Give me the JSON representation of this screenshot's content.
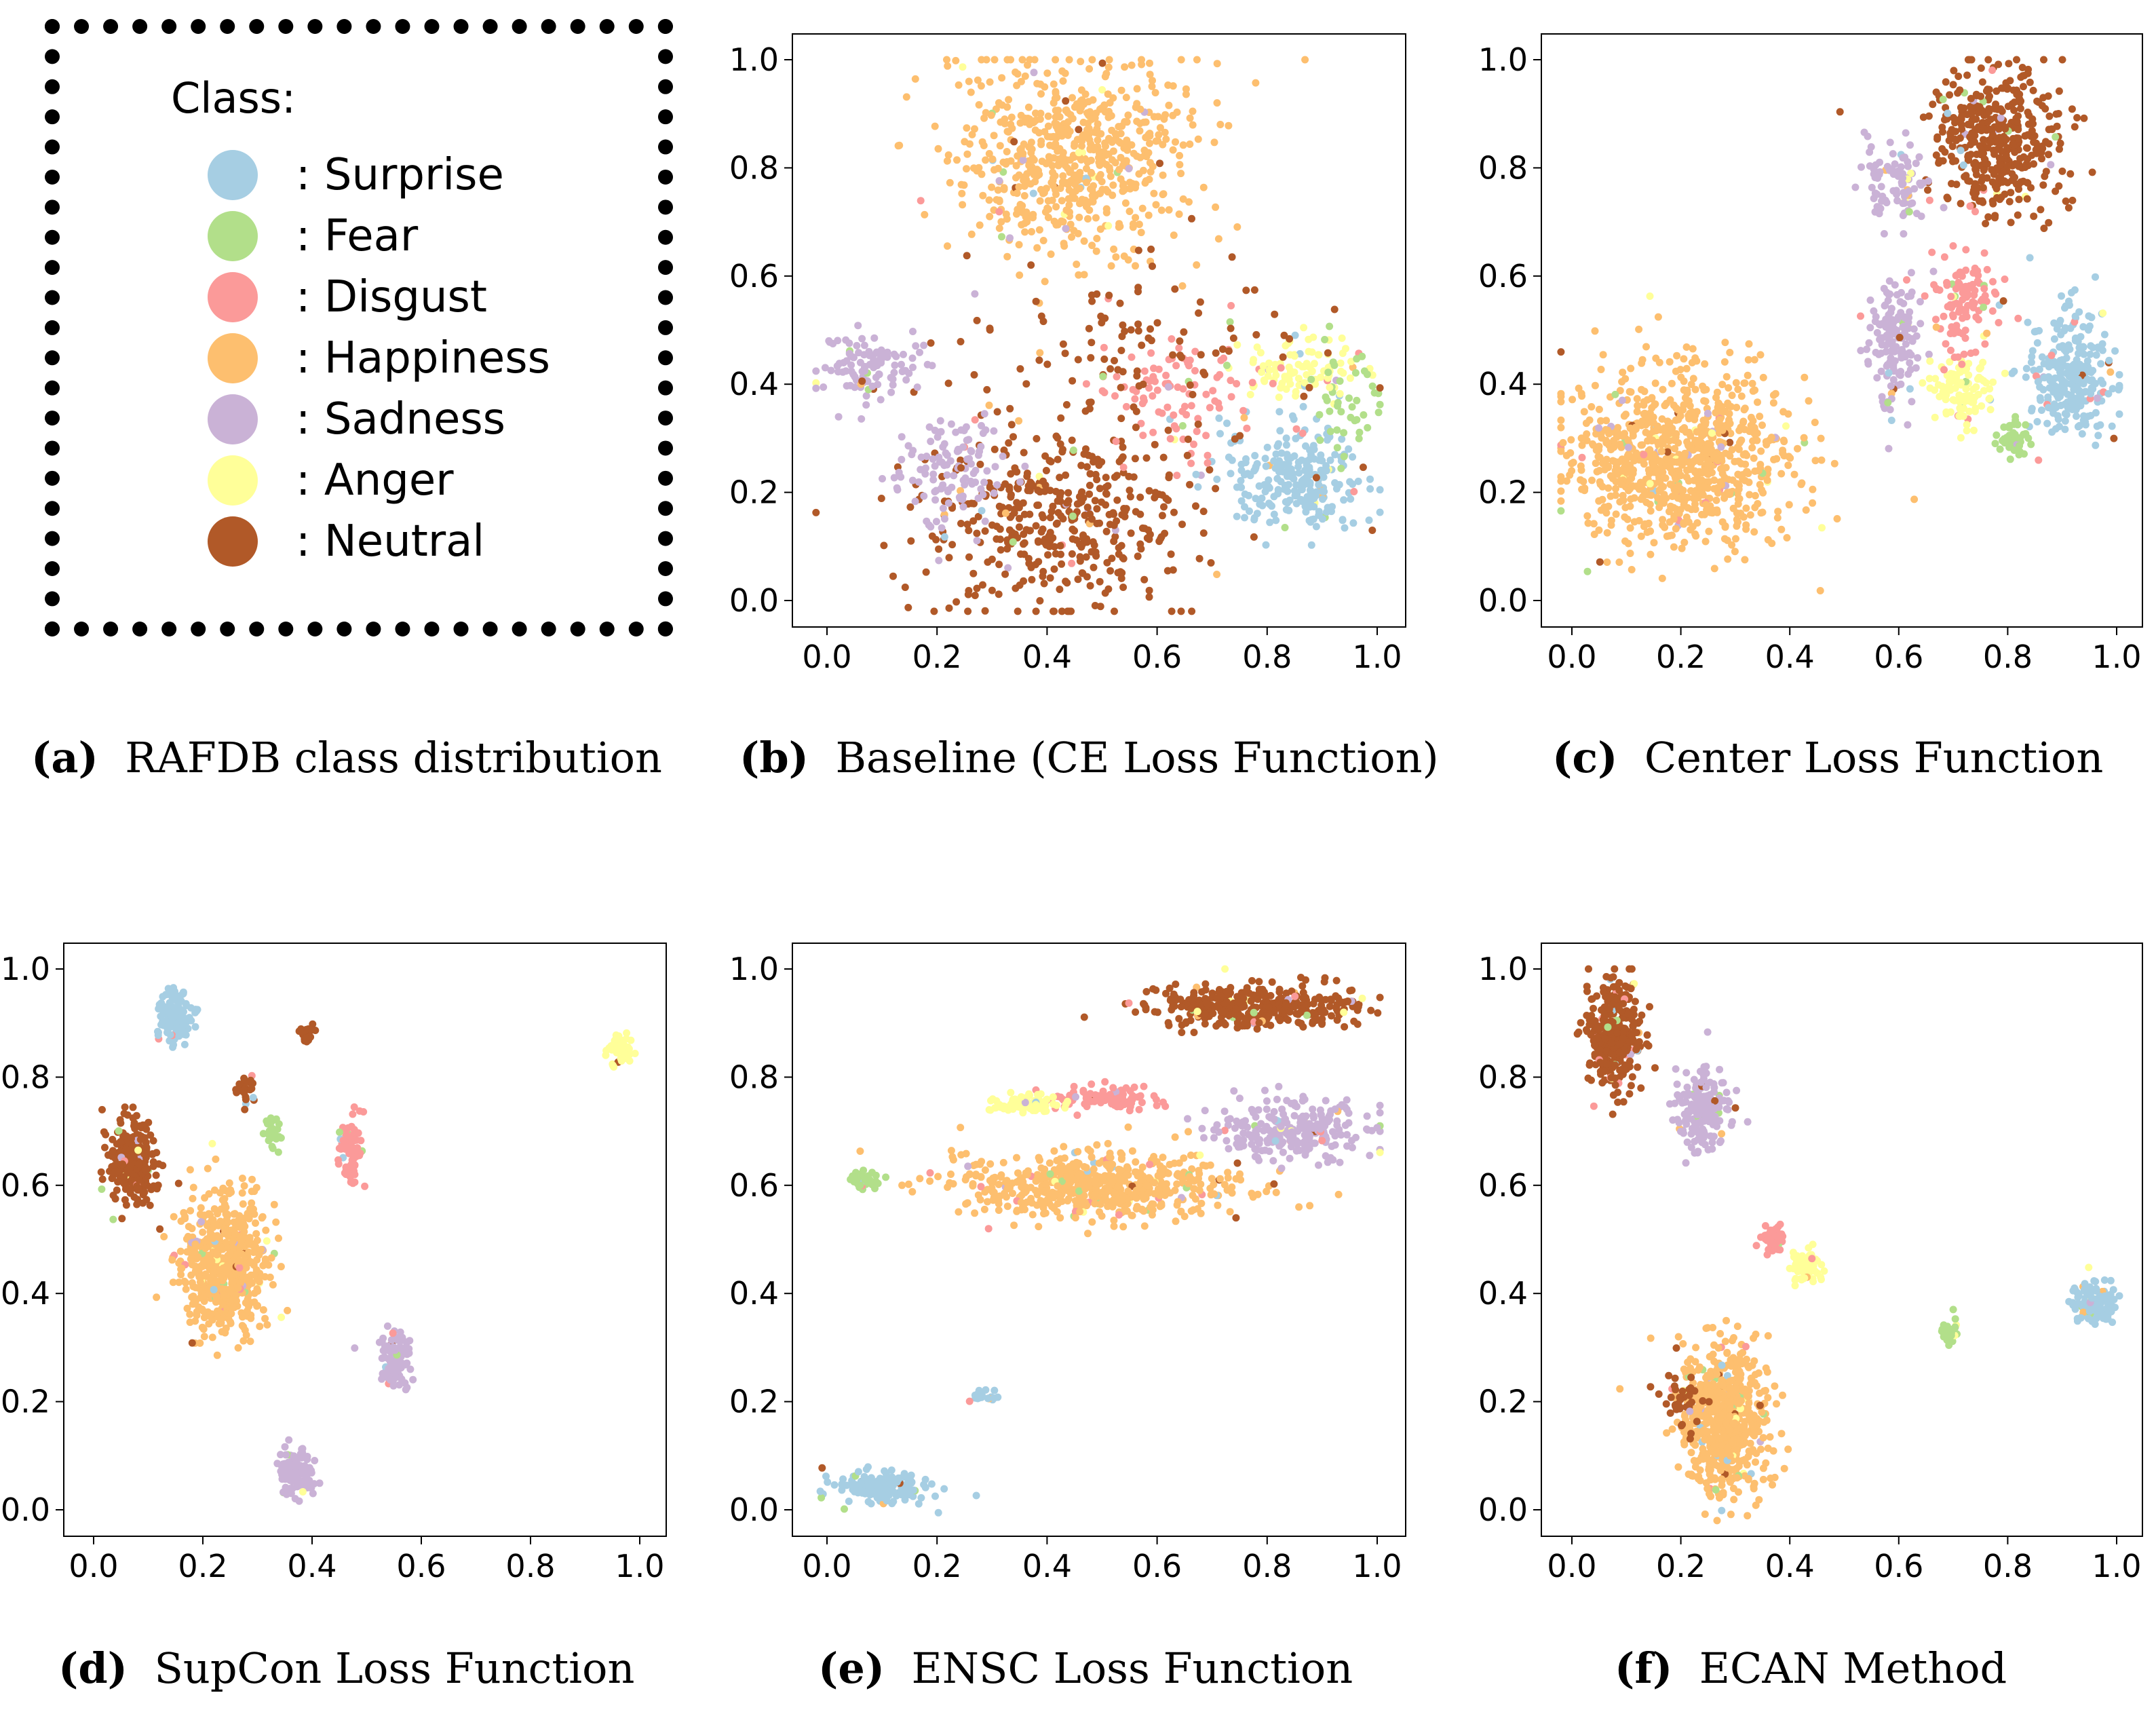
{
  "legend": {
    "title": "Class:",
    "items": [
      {
        "label": ": Surprise",
        "color": "#a6cee3"
      },
      {
        "label": ": Fear",
        "color": "#b2df8a"
      },
      {
        "label": ": Disgust",
        "color": "#fb9a99"
      },
      {
        "label": ": Happiness",
        "color": "#fdbf6f"
      },
      {
        "label": ": Sadness",
        "color": "#cab2d6"
      },
      {
        "label": ": Anger",
        "color": "#ffff99"
      },
      {
        "label": ": Neutral",
        "color": "#b15928"
      }
    ]
  },
  "captions": {
    "a": {
      "letter": "(a)",
      "text": "RAFDB class distribution"
    },
    "b": {
      "letter": "(b)",
      "text": "Baseline (CE Loss Function)"
    },
    "c": {
      "letter": "(c)",
      "text": "Center Loss Function"
    },
    "d": {
      "letter": "(d)",
      "text": "SupCon Loss Function"
    },
    "e": {
      "letter": "(e)",
      "text": "ENSC Loss Function"
    },
    "f": {
      "letter": "(f)",
      "text": "ECAN Method"
    }
  },
  "chart_data": [
    {
      "id": "b",
      "type": "scatter",
      "title": "Baseline (CE Loss Function)",
      "xlim": [
        0,
        1
      ],
      "ylim": [
        0,
        1
      ],
      "xticks": [
        "0.0",
        "0.2",
        "0.4",
        "0.6",
        "0.8",
        "1.0"
      ],
      "yticks": [
        "0.0",
        "0.2",
        "0.4",
        "0.6",
        "0.8",
        "1.0"
      ],
      "clusters": [
        {
          "class": "Happiness",
          "cx": 0.45,
          "cy": 0.82,
          "sx": 0.11,
          "sy": 0.09,
          "n": 650
        },
        {
          "class": "Neutral",
          "cx": 0.42,
          "cy": 0.15,
          "sx": 0.12,
          "sy": 0.08,
          "n": 420
        },
        {
          "class": "Sadness",
          "cx": 0.08,
          "cy": 0.43,
          "sx": 0.05,
          "sy": 0.03,
          "n": 110
        },
        {
          "class": "Sadness",
          "cx": 0.22,
          "cy": 0.24,
          "sx": 0.05,
          "sy": 0.05,
          "n": 120
        },
        {
          "class": "Surprise",
          "cx": 0.86,
          "cy": 0.23,
          "sx": 0.07,
          "sy": 0.05,
          "n": 250
        },
        {
          "class": "Anger",
          "cx": 0.87,
          "cy": 0.43,
          "sx": 0.05,
          "sy": 0.03,
          "n": 100
        },
        {
          "class": "Disgust",
          "cx": 0.65,
          "cy": 0.38,
          "sx": 0.07,
          "sy": 0.05,
          "n": 100
        },
        {
          "class": "Fear",
          "cx": 0.94,
          "cy": 0.38,
          "sx": 0.04,
          "sy": 0.06,
          "n": 45
        },
        {
          "class": "Neutral",
          "cx": 0.55,
          "cy": 0.45,
          "sx": 0.15,
          "sy": 0.1,
          "n": 120
        }
      ]
    },
    {
      "id": "c",
      "type": "scatter",
      "title": "Center Loss Function",
      "xlim": [
        0,
        1
      ],
      "ylim": [
        0,
        1
      ],
      "xticks": [
        "0.0",
        "0.2",
        "0.4",
        "0.6",
        "0.8",
        "1.0"
      ],
      "yticks": [
        "0.0",
        "0.2",
        "0.4",
        "0.6",
        "0.8",
        "1.0"
      ],
      "clusters": [
        {
          "class": "Happiness",
          "cx": 0.2,
          "cy": 0.26,
          "sx": 0.1,
          "sy": 0.08,
          "n": 900
        },
        {
          "class": "Neutral",
          "cx": 0.78,
          "cy": 0.85,
          "sx": 0.06,
          "sy": 0.07,
          "n": 420
        },
        {
          "class": "Sadness",
          "cx": 0.59,
          "cy": 0.48,
          "sx": 0.025,
          "sy": 0.06,
          "n": 150
        },
        {
          "class": "Sadness",
          "cx": 0.6,
          "cy": 0.78,
          "sx": 0.03,
          "sy": 0.04,
          "n": 90
        },
        {
          "class": "Surprise",
          "cx": 0.92,
          "cy": 0.42,
          "sx": 0.04,
          "sy": 0.06,
          "n": 260
        },
        {
          "class": "Anger",
          "cx": 0.72,
          "cy": 0.39,
          "sx": 0.03,
          "sy": 0.03,
          "n": 100
        },
        {
          "class": "Disgust",
          "cx": 0.72,
          "cy": 0.55,
          "sx": 0.03,
          "sy": 0.05,
          "n": 110
        },
        {
          "class": "Fear",
          "cx": 0.81,
          "cy": 0.3,
          "sx": 0.015,
          "sy": 0.02,
          "n": 40
        }
      ]
    },
    {
      "id": "d",
      "type": "scatter",
      "title": "SupCon Loss Function",
      "xlim": [
        0,
        1
      ],
      "ylim": [
        0,
        1
      ],
      "xticks": [
        "0.0",
        "0.2",
        "0.4",
        "0.6",
        "0.8",
        "1.0"
      ],
      "yticks": [
        "0.0",
        "0.2",
        "0.4",
        "0.6",
        "0.8",
        "1.0"
      ],
      "clusters": [
        {
          "class": "Happiness",
          "cx": 0.24,
          "cy": 0.45,
          "sx": 0.04,
          "sy": 0.06,
          "n": 600
        },
        {
          "class": "Neutral",
          "cx": 0.07,
          "cy": 0.64,
          "sx": 0.02,
          "sy": 0.04,
          "n": 280
        },
        {
          "class": "Surprise",
          "cx": 0.15,
          "cy": 0.91,
          "sx": 0.015,
          "sy": 0.025,
          "n": 130
        },
        {
          "class": "Sadness",
          "cx": 0.37,
          "cy": 0.07,
          "sx": 0.015,
          "sy": 0.025,
          "n": 110
        },
        {
          "class": "Sadness",
          "cx": 0.55,
          "cy": 0.28,
          "sx": 0.015,
          "sy": 0.025,
          "n": 110
        },
        {
          "class": "Disgust",
          "cx": 0.47,
          "cy": 0.66,
          "sx": 0.012,
          "sy": 0.035,
          "n": 80
        },
        {
          "class": "Anger",
          "cx": 0.96,
          "cy": 0.85,
          "sx": 0.012,
          "sy": 0.015,
          "n": 60
        },
        {
          "class": "Fear",
          "cx": 0.33,
          "cy": 0.7,
          "sx": 0.008,
          "sy": 0.015,
          "n": 25
        },
        {
          "class": "Neutral",
          "cx": 0.39,
          "cy": 0.88,
          "sx": 0.008,
          "sy": 0.012,
          "n": 25
        },
        {
          "class": "Neutral",
          "cx": 0.28,
          "cy": 0.78,
          "sx": 0.01,
          "sy": 0.012,
          "n": 25
        }
      ]
    },
    {
      "id": "e",
      "type": "scatter",
      "title": "ENSC Loss Function",
      "xlim": [
        0,
        1
      ],
      "ylim": [
        0,
        1
      ],
      "xticks": [
        "0.0",
        "0.2",
        "0.4",
        "0.6",
        "0.8",
        "1.0"
      ],
      "yticks": [
        "0.0",
        "0.2",
        "0.4",
        "0.6",
        "0.8",
        "1.0"
      ],
      "clusters": [
        {
          "class": "Happiness",
          "cx": 0.5,
          "cy": 0.6,
          "sx": 0.13,
          "sy": 0.03,
          "n": 600
        },
        {
          "class": "Neutral",
          "cx": 0.78,
          "cy": 0.93,
          "sx": 0.1,
          "sy": 0.02,
          "n": 350
        },
        {
          "class": "Sadness",
          "cx": 0.85,
          "cy": 0.7,
          "sx": 0.07,
          "sy": 0.025,
          "n": 260
        },
        {
          "class": "Surprise",
          "cx": 0.1,
          "cy": 0.04,
          "sx": 0.04,
          "sy": 0.015,
          "n": 160
        },
        {
          "class": "Disgust",
          "cx": 0.5,
          "cy": 0.76,
          "sx": 0.05,
          "sy": 0.012,
          "n": 90
        },
        {
          "class": "Anger",
          "cx": 0.36,
          "cy": 0.75,
          "sx": 0.03,
          "sy": 0.01,
          "n": 80
        },
        {
          "class": "Fear",
          "cx": 0.07,
          "cy": 0.61,
          "sx": 0.015,
          "sy": 0.008,
          "n": 40
        },
        {
          "class": "Surprise",
          "cx": 0.29,
          "cy": 0.21,
          "sx": 0.015,
          "sy": 0.006,
          "n": 20
        }
      ]
    },
    {
      "id": "f",
      "type": "scatter",
      "title": "ECAN Method",
      "xlim": [
        0,
        1
      ],
      "ylim": [
        0,
        1
      ],
      "xticks": [
        "0.0",
        "0.2",
        "0.4",
        "0.6",
        "0.8",
        "1.0"
      ],
      "yticks": [
        "0.0",
        "0.2",
        "0.4",
        "0.6",
        "0.8",
        "1.0"
      ],
      "clusters": [
        {
          "class": "Happiness",
          "cx": 0.28,
          "cy": 0.17,
          "sx": 0.04,
          "sy": 0.07,
          "n": 650
        },
        {
          "class": "Neutral",
          "cx": 0.08,
          "cy": 0.88,
          "sx": 0.025,
          "sy": 0.05,
          "n": 300
        },
        {
          "class": "Sadness",
          "cx": 0.24,
          "cy": 0.74,
          "sx": 0.025,
          "sy": 0.04,
          "n": 180
        },
        {
          "class": "Surprise",
          "cx": 0.96,
          "cy": 0.38,
          "sx": 0.02,
          "sy": 0.018,
          "n": 140
        },
        {
          "class": "Disgust",
          "cx": 0.37,
          "cy": 0.5,
          "sx": 0.01,
          "sy": 0.012,
          "n": 50
        },
        {
          "class": "Anger",
          "cx": 0.43,
          "cy": 0.45,
          "sx": 0.015,
          "sy": 0.015,
          "n": 60
        },
        {
          "class": "Fear",
          "cx": 0.69,
          "cy": 0.33,
          "sx": 0.008,
          "sy": 0.015,
          "n": 30
        },
        {
          "class": "Neutral",
          "cx": 0.2,
          "cy": 0.2,
          "sx": 0.02,
          "sy": 0.03,
          "n": 40
        }
      ]
    }
  ]
}
